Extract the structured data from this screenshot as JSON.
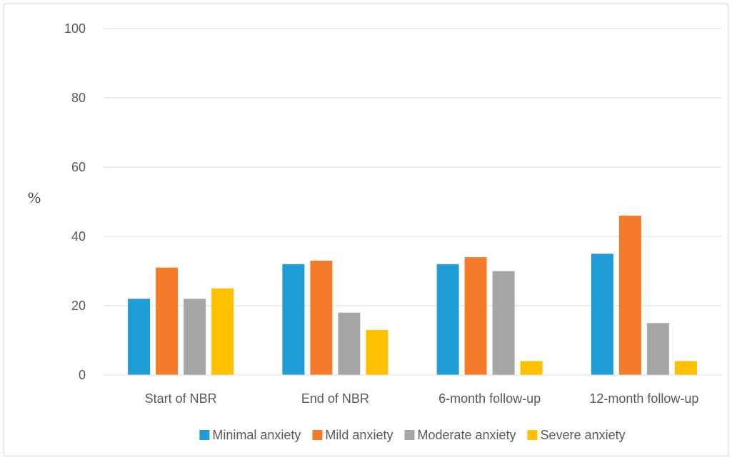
{
  "chart_data": {
    "type": "bar",
    "title": "",
    "xlabel": "",
    "ylabel": "%",
    "ylim": [
      0,
      100
    ],
    "yticks": [
      0,
      20,
      40,
      60,
      80,
      100
    ],
    "grid": true,
    "legend_position": "bottom",
    "categories": [
      "Start of NBR",
      "End of NBR",
      "6-month follow-up",
      "12-month follow-up"
    ],
    "series": [
      {
        "name": "Minimal anxiety",
        "color": "#1f9bd7",
        "values": [
          22,
          32,
          32,
          35
        ]
      },
      {
        "name": "Mild anxiety",
        "color": "#f47b2a",
        "values": [
          31,
          33,
          34,
          46
        ]
      },
      {
        "name": "Moderate anxiety",
        "color": "#a5a5a5",
        "values": [
          22,
          18,
          30,
          15
        ]
      },
      {
        "name": "Severe anxiety",
        "color": "#ffc000",
        "values": [
          25,
          13,
          4,
          4
        ]
      }
    ]
  }
}
